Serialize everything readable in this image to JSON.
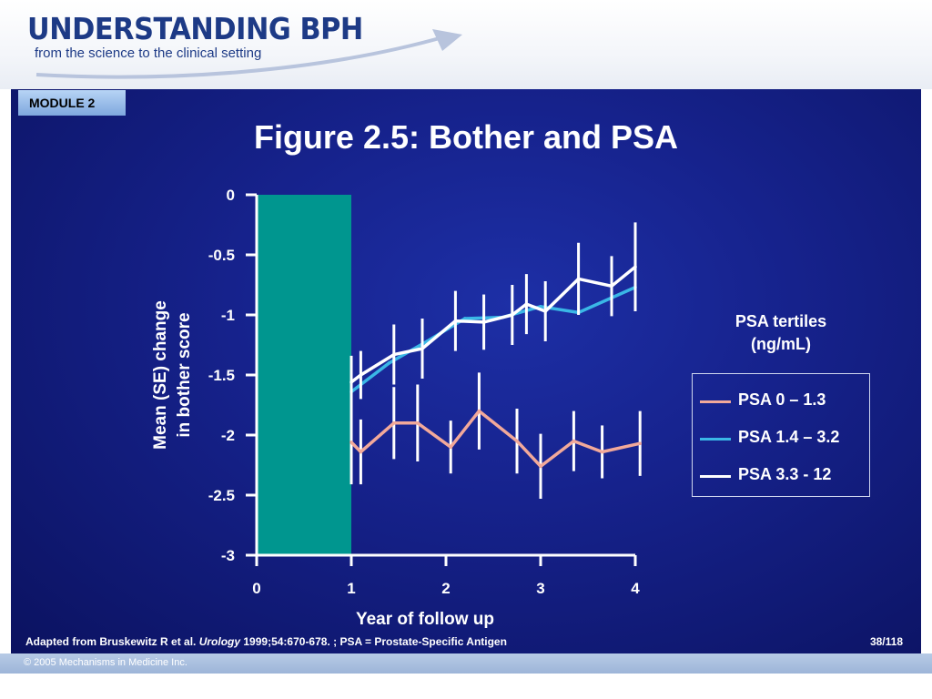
{
  "header": {
    "logo_title": "UNDERSTANDING BPH",
    "logo_subtitle": "from the science to the clinical setting"
  },
  "module_label": "MODULE 2",
  "slide_title": "Figure 2.5: Bother and PSA",
  "legend": {
    "title_line1": "PSA tertiles",
    "title_line2": "(ng/mL)"
  },
  "footer": {
    "note_prefix": "Adapted from Bruskewitz R et al. ",
    "note_journal": "Urology",
    "note_suffix": " 1999;54:670-678. ;  PSA = Prostate-Specific Antigen",
    "page": "38/118",
    "copyright": "© 2005 Mechanisms in Medicine Inc."
  },
  "colors": {
    "bar": "#00968f",
    "psa_low": "#f2a99a",
    "psa_mid": "#3ab7e6",
    "psa_high": "#ffffff",
    "slide_bg": "#16228c"
  },
  "chart_data": {
    "type": "line",
    "xlabel": "Year of follow up",
    "ylabel_line1": "Mean (SE) change",
    "ylabel_line2": "in bother score",
    "xlim": [
      0,
      4
    ],
    "ylim": [
      -3,
      0
    ],
    "x_ticks": [
      0,
      1,
      2,
      3,
      4
    ],
    "y_ticks": [
      0,
      -0.5,
      -1,
      -1.5,
      -2,
      -2.5,
      -3
    ],
    "y_tick_labels": [
      "0",
      "-0.5",
      "-1",
      "-1.5",
      "-2",
      "-2.5",
      "-3"
    ],
    "x_tick_labels": [
      "0",
      "1",
      "2",
      "3",
      "4"
    ],
    "grid": false,
    "legend_position": "right",
    "baseline_bar": {
      "x_start": 0,
      "x_end": 1,
      "y_from": 0,
      "y_to": -3
    },
    "series": [
      {
        "name": "PSA 0 – 1.3",
        "color_key": "psa_low",
        "points": [
          {
            "x": 1.0,
            "y": -2.06,
            "se": 0.35
          },
          {
            "x": 1.1,
            "y": -2.14,
            "se": 0.27
          },
          {
            "x": 1.45,
            "y": -1.9,
            "se": 0.3
          },
          {
            "x": 1.7,
            "y": -1.9,
            "se": 0.32
          },
          {
            "x": 2.05,
            "y": -2.1,
            "se": 0.22
          },
          {
            "x": 2.35,
            "y": -1.8,
            "se": 0.32
          },
          {
            "x": 2.75,
            "y": -2.05,
            "se": 0.27
          },
          {
            "x": 3.0,
            "y": -2.26,
            "se": 0.27
          },
          {
            "x": 3.35,
            "y": -2.05,
            "se": 0.25
          },
          {
            "x": 3.65,
            "y": -2.14,
            "se": 0.22
          },
          {
            "x": 4.05,
            "y": -2.07,
            "se": 0.27
          }
        ]
      },
      {
        "name": "PSA 1.4 – 3.2",
        "color_key": "psa_mid",
        "points": [
          {
            "x": 1.0,
            "y": -1.64
          },
          {
            "x": 1.4,
            "y": -1.4
          },
          {
            "x": 1.8,
            "y": -1.22
          },
          {
            "x": 2.2,
            "y": -1.03
          },
          {
            "x": 2.6,
            "y": -1.02
          },
          {
            "x": 3.0,
            "y": -0.93
          },
          {
            "x": 3.4,
            "y": -0.98
          },
          {
            "x": 4.0,
            "y": -0.77
          }
        ]
      },
      {
        "name": "PSA 3.3 - 12",
        "color_key": "psa_high",
        "points": [
          {
            "x": 1.0,
            "y": -1.56,
            "se": 0.22
          },
          {
            "x": 1.1,
            "y": -1.5,
            "se": 0.2
          },
          {
            "x": 1.45,
            "y": -1.33,
            "se": 0.25
          },
          {
            "x": 1.75,
            "y": -1.28,
            "se": 0.25
          },
          {
            "x": 2.1,
            "y": -1.05,
            "se": 0.25
          },
          {
            "x": 2.4,
            "y": -1.06,
            "se": 0.23
          },
          {
            "x": 2.7,
            "y": -1.0,
            "se": 0.25
          },
          {
            "x": 2.85,
            "y": -0.91,
            "se": 0.25
          },
          {
            "x": 3.05,
            "y": -0.97,
            "se": 0.25
          },
          {
            "x": 3.4,
            "y": -0.7,
            "se": 0.3
          },
          {
            "x": 3.75,
            "y": -0.76,
            "se": 0.25
          },
          {
            "x": 4.0,
            "y": -0.6,
            "se": 0.37
          }
        ]
      }
    ]
  }
}
